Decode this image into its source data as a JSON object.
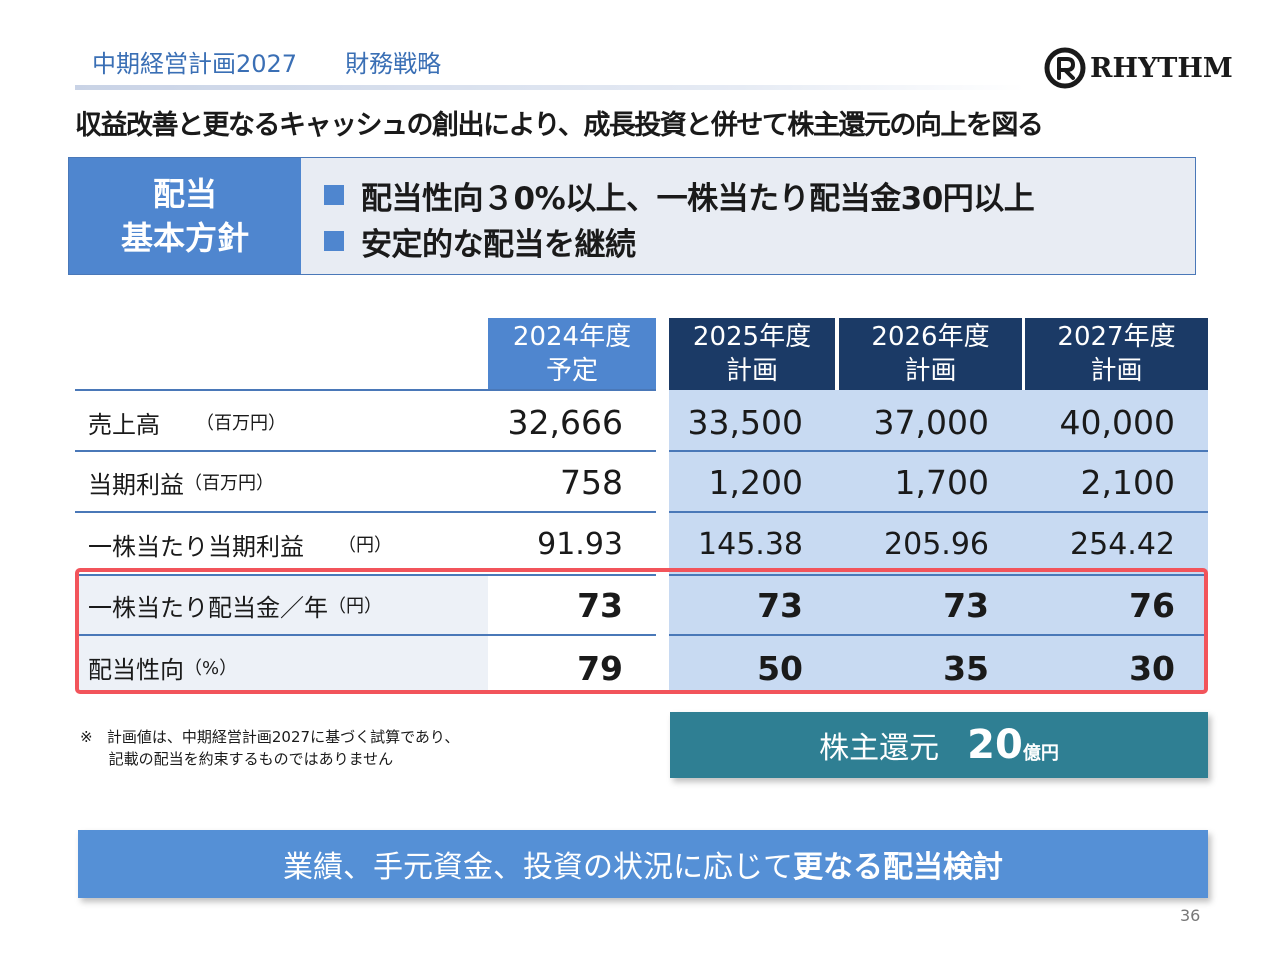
{
  "header": {
    "plan": "中期経営計画2027",
    "section": "財務戦略",
    "logo_text": "RHYTHM"
  },
  "headline": "収益改善と更なるキャッシュの創出により、成長投資と併せて株主還元の向上を図る",
  "policy": {
    "label_line1": "配当",
    "label_line2": "基本方針",
    "items": [
      "配当性向３0%以上、一株当たり配当金30円以上",
      "安定的な配当を継続"
    ]
  },
  "table": {
    "columns": [
      {
        "year": "2024年度",
        "type": "予定",
        "color": "#4f86cf"
      },
      {
        "year": "2025年度",
        "type": "計画",
        "color": "#1b3a66"
      },
      {
        "year": "2026年度",
        "type": "計画",
        "color": "#1b3a66"
      },
      {
        "year": "2027年度",
        "type": "計画",
        "color": "#1b3a66"
      }
    ],
    "rows": [
      {
        "label": "売上高",
        "unit": "（百万円）",
        "values": [
          "32,666",
          "33,500",
          "37,000",
          "40,000"
        ]
      },
      {
        "label": "当期利益",
        "unit": "（百万円）",
        "values": [
          "758",
          "1,200",
          "1,700",
          "2,100"
        ]
      },
      {
        "label": "一株当たり当期利益",
        "unit": "（円）",
        "values": [
          "91.93",
          "145.38",
          "205.96",
          "254.42"
        ]
      },
      {
        "label": "一株当たり配当金／年",
        "unit": "（円）",
        "values": [
          "73",
          "73",
          "73",
          "76"
        ]
      },
      {
        "label": "配当性向",
        "unit": "（%）",
        "values": [
          "79",
          "50",
          "35",
          "30"
        ]
      }
    ]
  },
  "note": {
    "mark": "※",
    "line1": "計画値は、中期経営計画2027に基づく試算であり、",
    "line2": "記載の配当を約束するものではありません"
  },
  "shareholder_return": {
    "label": "株主還元",
    "value": "20",
    "unit": "億円"
  },
  "banner": {
    "normal": "業績、手元資金、投資の状況に応じて",
    "bold": "更なる配当検討"
  },
  "page_number": "36"
}
